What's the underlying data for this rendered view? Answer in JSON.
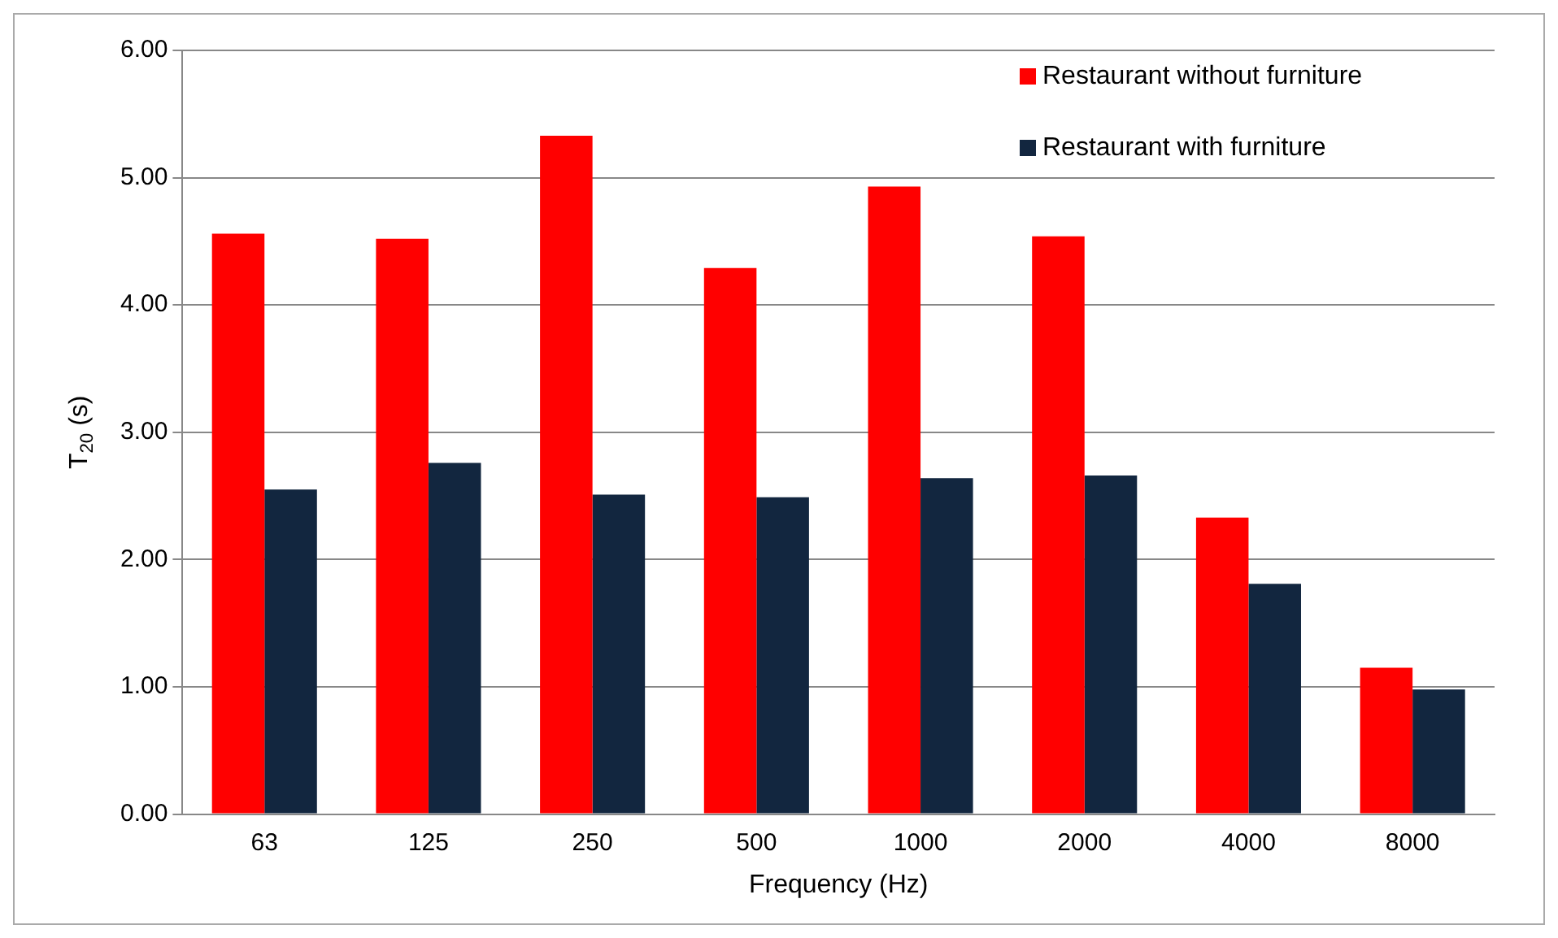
{
  "chart_data": {
    "type": "bar",
    "xlabel": "Frequency (Hz)",
    "ylabel": "T$_{20}$ (s)",
    "categories": [
      "63",
      "125",
      "250",
      "500",
      "1000",
      "2000",
      "4000",
      "8000"
    ],
    "series": [
      {
        "name": "Restaurant without furniture",
        "color": "#ff0000",
        "values": [
          4.56,
          4.52,
          5.33,
          4.29,
          4.93,
          4.54,
          2.33,
          1.15
        ]
      },
      {
        "name": "Restaurant with furniture",
        "color": "#12263f",
        "values": [
          2.55,
          2.76,
          2.51,
          2.49,
          2.64,
          2.66,
          1.81,
          0.98
        ]
      }
    ],
    "ylim": [
      0,
      6
    ],
    "yticks": [
      {
        "value": 0,
        "label": "0.00"
      },
      {
        "value": 1,
        "label": "1.00"
      },
      {
        "value": 2,
        "label": "2.00"
      },
      {
        "value": 3,
        "label": "3.00"
      },
      {
        "value": 4,
        "label": "4.00"
      },
      {
        "value": 5,
        "label": "5.00"
      },
      {
        "value": 6,
        "label": "6.00"
      }
    ],
    "grid": "y",
    "legend": "top right"
  }
}
